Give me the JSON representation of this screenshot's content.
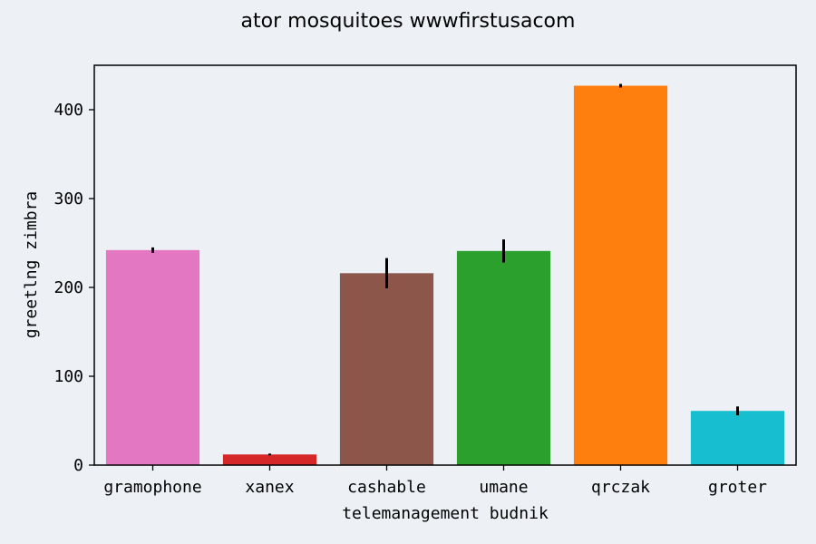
{
  "chart_data": {
    "type": "bar",
    "title": "ator mosquitoes wwwfirstusacom",
    "xlabel": "telemanagement budnik",
    "ylabel": "greetlng zimbra",
    "categories": [
      "gramophone",
      "xanex",
      "cashable",
      "umane",
      "qrczak",
      "groter"
    ],
    "values": [
      242,
      12,
      216,
      241,
      427,
      61
    ],
    "errors": [
      3,
      1,
      17,
      13,
      2,
      5
    ],
    "colors": [
      "#e377c2",
      "#d62728",
      "#8c564b",
      "#2ca02c",
      "#ff7f0e",
      "#17becf"
    ],
    "ylim": [
      0,
      450
    ],
    "yticks": [
      0,
      100,
      200,
      300,
      400
    ],
    "grid": false,
    "background": "#edf0f5"
  }
}
